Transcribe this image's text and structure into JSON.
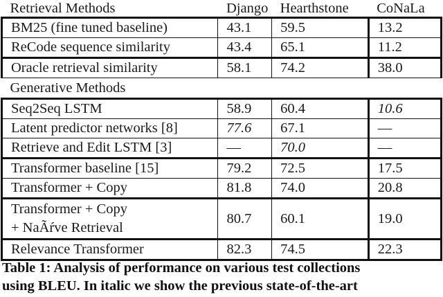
{
  "table": {
    "header": {
      "method": "Retrieval Methods",
      "columns": [
        "Django",
        "Hearthstone",
        "CoNaLa"
      ]
    },
    "retrieval_rows": [
      {
        "method": "BM25 (fine tuned baseline)",
        "django": "43.1",
        "hearthstone": "59.5",
        "conala": "13.2"
      },
      {
        "method": "ReCode sequence similarity",
        "django": "43.4",
        "hearthstone": "65.1",
        "conala": "11.2"
      },
      {
        "method": "Oracle retrieval similarity",
        "django": "58.1",
        "hearthstone": "74.2",
        "conala": "38.0"
      }
    ],
    "generative_section_label": "Generative Methods",
    "generative_rows": [
      {
        "method": "Seq2Seq LSTM",
        "django": "58.9",
        "hearthstone": "60.4",
        "conala": "10.6",
        "italic": [
          "conala"
        ]
      },
      {
        "method": "Latent predictor networks [8]",
        "django": "77.6",
        "hearthstone": "67.1",
        "conala": "—",
        "italic": [
          "django"
        ]
      },
      {
        "method": "Retrieve and Edit LSTM [3]",
        "django": "—",
        "hearthstone": "70.0",
        "conala": "—",
        "italic": [
          "hearthstone"
        ]
      },
      {
        "method": "Transformer baseline [15]",
        "django": "79.2",
        "hearthstone": "72.5",
        "conala": "17.5"
      },
      {
        "method": "Transformer + Copy",
        "django": "81.8",
        "hearthstone": "74.0",
        "conala": "20.8"
      },
      {
        "method_line1": "Transformer + Copy",
        "method_line2": "+ NaÃŕve Retrieval",
        "django": "80.7",
        "hearthstone": "60.1",
        "conala": "19.0"
      },
      {
        "method": "Relevance Transformer",
        "django": "82.3",
        "hearthstone": "74.5",
        "conala": "22.3",
        "bold": true
      }
    ]
  },
  "caption": {
    "line1": "Table 1: Analysis of performance on various test collections",
    "line2": "using BLEU. In italic we show the previous state-of-the-art"
  },
  "chart_data": {
    "type": "table",
    "title": "Table 1: Analysis of performance on various test collections using BLEU. In italic we show the previous state-of-the-art",
    "columns": [
      "Method",
      "Django",
      "Hearthstone",
      "CoNaLa"
    ],
    "sections": [
      {
        "name": "Retrieval Methods",
        "rows": [
          [
            "BM25 (fine tuned baseline)",
            43.1,
            59.5,
            13.2
          ],
          [
            "ReCode sequence similarity",
            43.4,
            65.1,
            11.2
          ],
          [
            "Oracle retrieval similarity",
            58.1,
            74.2,
            38.0
          ]
        ]
      },
      {
        "name": "Generative Methods",
        "rows": [
          [
            "Seq2Seq LSTM",
            58.9,
            60.4,
            10.6
          ],
          [
            "Latent predictor networks [8]",
            77.6,
            67.1,
            null
          ],
          [
            "Retrieve and Edit LSTM [3]",
            null,
            70.0,
            null
          ],
          [
            "Transformer baseline [15]",
            79.2,
            72.5,
            17.5
          ],
          [
            "Transformer + Copy",
            81.8,
            74.0,
            20.8
          ],
          [
            "Transformer + Copy + NaÃŕve Retrieval",
            80.7,
            60.1,
            19.0
          ],
          [
            "Relevance Transformer",
            82.3,
            74.5,
            22.3
          ]
        ]
      }
    ],
    "italic_cells": [
      {
        "row": "Seq2Seq LSTM",
        "column": "CoNaLa"
      },
      {
        "row": "Latent predictor networks [8]",
        "column": "Django"
      },
      {
        "row": "Retrieve and Edit LSTM [3]",
        "column": "Hearthstone"
      }
    ],
    "bold_row": "Relevance Transformer",
    "metric": "BLEU"
  }
}
